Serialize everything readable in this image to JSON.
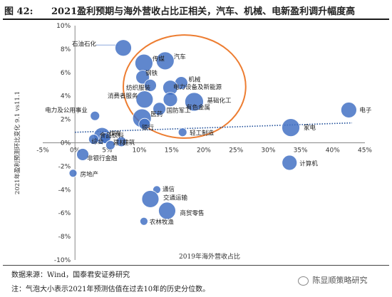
{
  "figure": {
    "number": "图 42:",
    "title": "2021盈利预期与海外营收占比正相关，汽车、机械、电新盈利调升幅度高"
  },
  "source": "数据来源：Wind，国泰君安证券研究",
  "note": "注：气泡大小表示2021年预测估值在过去10年的历史分位数。",
  "watermark": "陈显顺策略研究",
  "colors": {
    "bubble": "#4472C4",
    "trendline": "#1F4E99",
    "circle": "#ED7D31",
    "callout": "#8EA9DB"
  },
  "chart_data": {
    "type": "scatter",
    "xlabel": "2019年海外营收占比",
    "ylabel": "2021年盈利预测环比变化 9.1 vs11.1",
    "xlim": [
      -0.05,
      0.45
    ],
    "ylim": [
      -0.1,
      0.1
    ],
    "x_ticks": [
      "-5%",
      "0%",
      "5%",
      "10%",
      "15%",
      "20%",
      "25%",
      "30%",
      "35%",
      "40%",
      "45%"
    ],
    "y_ticks": [
      "10%",
      "8%",
      "6%",
      "4%",
      "2%",
      "0%",
      "-2%",
      "-4%",
      "-6%",
      "-8%",
      "-10%"
    ],
    "trendline": {
      "x": [
        0.0,
        0.43
      ],
      "y": [
        0.009,
        0.017
      ]
    },
    "highlight_circle": {
      "center": [
        0.17,
        0.048
      ],
      "radius_x": 0.095,
      "radius_y": 0.044
    },
    "points": [
      {
        "label": "石油石化",
        "x": 0.075,
        "y": 0.081,
        "size": 0.85
      },
      {
        "label": "传媒",
        "x": 0.107,
        "y": 0.068,
        "size": 0.95
      },
      {
        "label": "汽车",
        "x": 0.14,
        "y": 0.07,
        "size": 0.95
      },
      {
        "label": "钢铁",
        "x": 0.105,
        "y": 0.056,
        "size": 0.65
      },
      {
        "label": "纺织服装",
        "x": 0.117,
        "y": 0.049,
        "size": 0.55
      },
      {
        "label": "机械",
        "x": 0.165,
        "y": 0.051,
        "size": 0.6
      },
      {
        "label": "电力设备及新能源",
        "x": 0.148,
        "y": 0.047,
        "size": 0.75
      },
      {
        "label": "消费者服务",
        "x": 0.108,
        "y": 0.037,
        "size": 0.9
      },
      {
        "label": "基础化工",
        "x": 0.185,
        "y": 0.035,
        "size": 1.0
      },
      {
        "label": "国防军工",
        "x": 0.131,
        "y": 0.029,
        "size": 0.6
      },
      {
        "label": "有色金属",
        "x": 0.148,
        "y": 0.037,
        "size": 0.7
      },
      {
        "label": "电力及公用事业",
        "x": 0.031,
        "y": 0.023,
        "size": 0.35
      },
      {
        "label": "医药",
        "x": 0.104,
        "y": 0.021,
        "size": 1.0
      },
      {
        "label": "银行",
        "x": 0.108,
        "y": 0.016,
        "size": 0.5
      },
      {
        "label": "电子",
        "x": 0.425,
        "y": 0.028,
        "size": 0.8
      },
      {
        "label": "家电",
        "x": 0.335,
        "y": 0.013,
        "size": 0.95
      },
      {
        "label": "轻工制造",
        "x": 0.167,
        "y": 0.009,
        "size": 0.3
      },
      {
        "label": "煤炭",
        "x": 0.042,
        "y": 0.006,
        "size": 0.85
      },
      {
        "label": "食品饮料",
        "x": 0.047,
        "y": 0.004,
        "size": 0.45
      },
      {
        "label": "建筑",
        "x": 0.072,
        "y": 0.001,
        "size": 0.4
      },
      {
        "label": "综合",
        "x": 0.029,
        "y": 0.003,
        "size": 0.4
      },
      {
        "label": "建材",
        "x": 0.055,
        "y": -0.002,
        "size": 0.35
      },
      {
        "label": "非银行金融",
        "x": 0.012,
        "y": -0.01,
        "size": 0.55
      },
      {
        "label": "计算机",
        "x": 0.333,
        "y": -0.017,
        "size": 0.75
      },
      {
        "label": "房地产",
        "x": -0.003,
        "y": -0.026,
        "size": 0.25
      },
      {
        "label": "通信",
        "x": 0.127,
        "y": -0.04,
        "size": 0.25
      },
      {
        "label": "交通运输",
        "x": 0.117,
        "y": -0.048,
        "size": 0.9
      },
      {
        "label": "商贸零售",
        "x": 0.143,
        "y": -0.058,
        "size": 0.9
      },
      {
        "label": "农林牧渔",
        "x": 0.107,
        "y": -0.067,
        "size": 0.25
      }
    ]
  }
}
